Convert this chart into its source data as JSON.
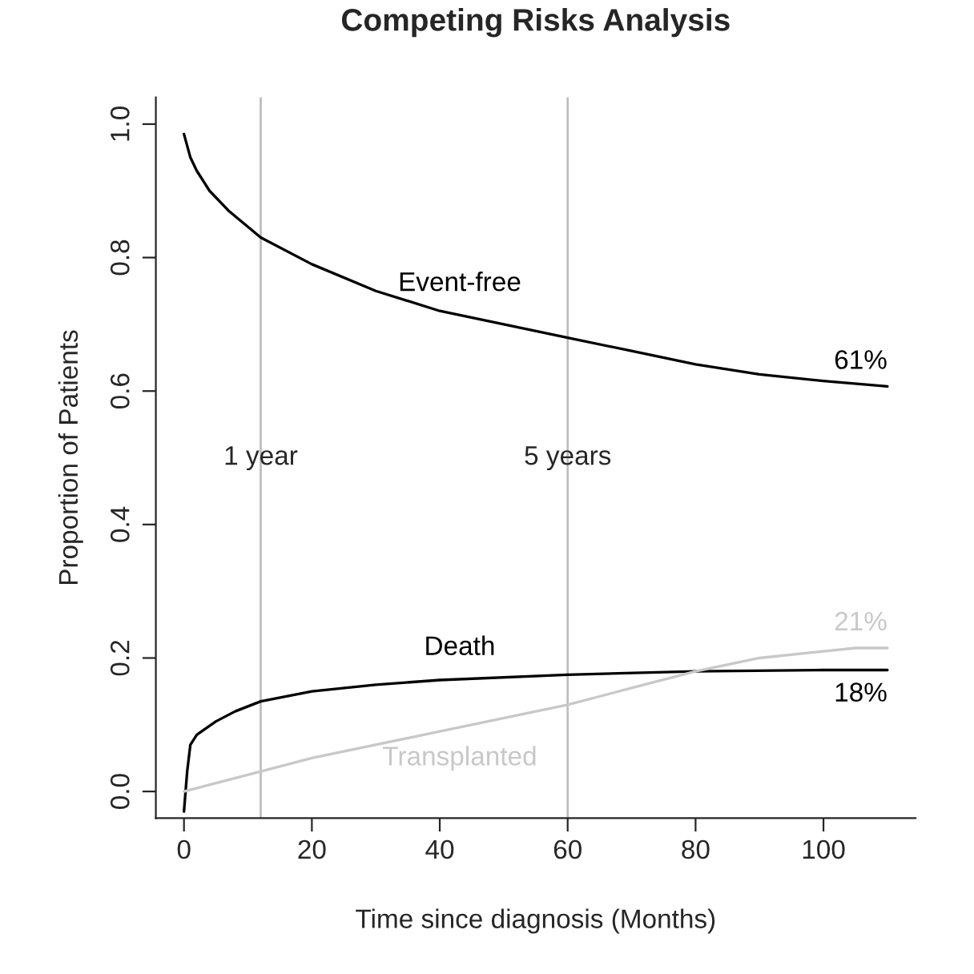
{
  "chart_data": {
    "type": "line",
    "title": "Competing Risks Analysis",
    "xlabel": "Time since diagnosis (Months)",
    "ylabel": "Proportion of Patients",
    "series": [
      {
        "name": "Event-free",
        "color": "#000000",
        "x": [
          0,
          1,
          2,
          4,
          7,
          12,
          20,
          30,
          40,
          50,
          60,
          70,
          80,
          90,
          100,
          110
        ],
        "values": [
          0.985,
          0.95,
          0.93,
          0.9,
          0.87,
          0.83,
          0.79,
          0.75,
          0.72,
          0.7,
          0.68,
          0.66,
          0.64,
          0.625,
          0.615,
          0.607
        ],
        "value_labels": [
          null,
          null,
          null,
          null,
          null,
          null,
          null,
          null,
          null,
          null,
          null,
          null,
          null,
          null,
          null,
          "61%"
        ]
      },
      {
        "name": "Death",
        "color": "#000000",
        "x": [
          0,
          0.5,
          1,
          2,
          5,
          8,
          12,
          20,
          30,
          40,
          60,
          80,
          100,
          110
        ],
        "values": [
          -0.03,
          0.03,
          0.07,
          0.085,
          0.105,
          0.12,
          0.135,
          0.15,
          0.16,
          0.167,
          0.175,
          0.18,
          0.182,
          0.182
        ],
        "value_labels": [
          null,
          null,
          null,
          null,
          null,
          null,
          null,
          null,
          null,
          null,
          null,
          null,
          null,
          "18%"
        ]
      },
      {
        "name": "Transplanted",
        "color": "#c8c8c8",
        "x": [
          0,
          12,
          20,
          40,
          60,
          70,
          80,
          90,
          100,
          105,
          110
        ],
        "values": [
          0.0,
          0.03,
          0.05,
          0.09,
          0.13,
          0.155,
          0.18,
          0.2,
          0.21,
          0.215,
          0.215
        ],
        "value_labels": [
          null,
          null,
          null,
          null,
          null,
          null,
          null,
          null,
          null,
          null,
          "21%"
        ]
      }
    ],
    "xlim": [
      -4.4,
      114.4
    ],
    "ylim": [
      -0.04,
      1.04
    ],
    "xticks": [
      0,
      20,
      40,
      60,
      80,
      100
    ],
    "yticks": [
      {
        "value": 0,
        "label": "0.0"
      },
      {
        "value": 0.2,
        "label": "0.2"
      },
      {
        "value": 0.4,
        "label": "0.4"
      },
      {
        "value": 0.6,
        "label": "0.6"
      },
      {
        "value": 0.8,
        "label": "0.8"
      },
      {
        "value": 1.0,
        "label": "1.0"
      }
    ],
    "ref_lines": [
      {
        "axis": "x",
        "value": 12,
        "label": "1 year",
        "color": "#bebebe"
      },
      {
        "axis": "x",
        "value": 60,
        "label": "5 years",
        "color": "#bebebe"
      }
    ],
    "grid": false,
    "legend": false
  }
}
